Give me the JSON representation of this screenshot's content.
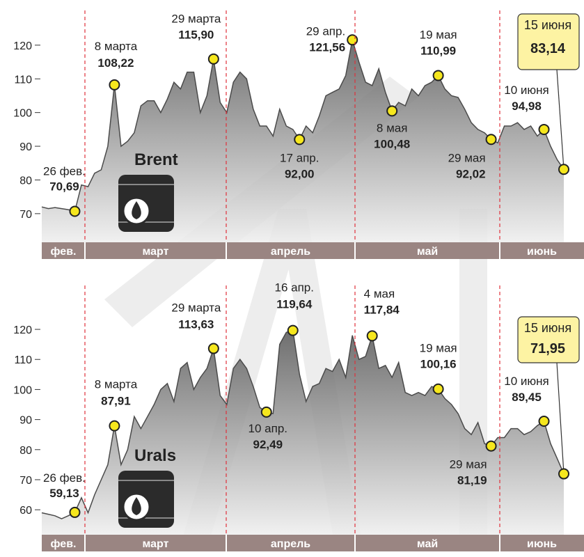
{
  "chart_data": [
    {
      "type": "area",
      "categories": [
        null,
        null,
        null,
        null,
        null,
        "26 фев.",
        null,
        null,
        null,
        null,
        null,
        "8 марта",
        null,
        null,
        null,
        null,
        null,
        null,
        null,
        null,
        null,
        null,
        null,
        null,
        null,
        null,
        "29 марта",
        null,
        null,
        null,
        null,
        null,
        null,
        null,
        null,
        null,
        null,
        null,
        null,
        "17 апр.",
        null,
        null,
        null,
        null,
        null,
        null,
        null,
        "29 апр.",
        null,
        null,
        null,
        null,
        null,
        "8 мая",
        null,
        null,
        null,
        null,
        null,
        null,
        "19 мая",
        null,
        null,
        null,
        null,
        null,
        null,
        null,
        "29 мая",
        null,
        null,
        null,
        null,
        null,
        null,
        null,
        "10 июня",
        null,
        null,
        "15 июня"
      ],
      "series": [
        {
          "name": "Brent",
          "color": "#4a4a4a",
          "values": [
            72,
            71.5,
            71.8,
            71.5,
            71.2,
            70.69,
            78.5,
            78,
            82,
            83,
            90,
            108.22,
            90,
            91.5,
            94,
            102,
            103.5,
            103.5,
            100,
            104,
            109,
            107,
            112,
            112,
            100,
            105,
            115.9,
            103,
            100,
            109,
            112,
            110,
            101,
            96,
            96,
            93,
            101,
            96,
            95,
            92,
            96,
            94,
            99,
            105,
            106,
            107,
            111,
            121.56,
            115,
            109,
            108,
            113,
            106,
            100.48,
            103,
            102,
            107,
            105,
            108,
            109,
            110.99,
            107,
            105,
            104.5,
            101,
            97,
            95,
            94,
            92.02,
            91,
            96,
            96,
            97,
            95,
            96,
            93,
            94.98,
            90,
            86,
            83.14
          ],
          "value_labels": [
            null,
            null,
            null,
            null,
            null,
            "70,69",
            null,
            null,
            null,
            null,
            null,
            "108,22",
            null,
            null,
            null,
            null,
            null,
            null,
            null,
            null,
            null,
            null,
            null,
            null,
            null,
            null,
            "115,90",
            null,
            null,
            null,
            null,
            null,
            null,
            null,
            null,
            null,
            null,
            null,
            null,
            "92,00",
            null,
            null,
            null,
            null,
            null,
            null,
            null,
            "121,56",
            null,
            null,
            null,
            null,
            null,
            "100,48",
            null,
            null,
            null,
            null,
            null,
            null,
            "110,99",
            null,
            null,
            null,
            null,
            null,
            null,
            null,
            "92,02",
            null,
            null,
            null,
            null,
            null,
            null,
            null,
            "94,98",
            null,
            null,
            "83,14"
          ]
        }
      ],
      "months": [
        "фев.",
        "март",
        "апрель",
        "май",
        "июнь"
      ],
      "ylim": [
        61.5,
        130.3
      ],
      "yticks": [
        70,
        80,
        90,
        100,
        110,
        120
      ]
    },
    {
      "type": "area",
      "categories": [
        null,
        null,
        null,
        null,
        null,
        "26 фев.",
        null,
        null,
        null,
        null,
        null,
        "8 марта",
        null,
        null,
        null,
        null,
        null,
        null,
        null,
        null,
        null,
        null,
        null,
        null,
        null,
        null,
        "29 марта",
        null,
        null,
        null,
        null,
        null,
        null,
        null,
        "10 апр.",
        null,
        null,
        null,
        "16 апр.",
        null,
        null,
        null,
        null,
        null,
        null,
        null,
        null,
        null,
        null,
        null,
        "4 мая",
        null,
        null,
        null,
        null,
        null,
        null,
        null,
        null,
        null,
        "19 мая",
        null,
        null,
        null,
        null,
        null,
        null,
        null,
        "29 мая",
        null,
        null,
        null,
        null,
        null,
        null,
        null,
        "10 июня",
        null,
        null,
        "15 июня"
      ],
      "series": [
        {
          "name": "Urals",
          "color": "#4a4a4a",
          "values": [
            59,
            58.5,
            58,
            57,
            58,
            59.13,
            64,
            59,
            65,
            70,
            75,
            87.91,
            75,
            80,
            91,
            87,
            91,
            95,
            100,
            102,
            96,
            107,
            109,
            100,
            104,
            107,
            113.63,
            98,
            95,
            107,
            110,
            107,
            101,
            94,
            92.49,
            92,
            115,
            119,
            119.64,
            105,
            96,
            101,
            102,
            107,
            106,
            110,
            104,
            118,
            110,
            111,
            117.84,
            107,
            108,
            104,
            109,
            99,
            98,
            99,
            98,
            101,
            100.16,
            97,
            95,
            92,
            87,
            85,
            89,
            82,
            81.19,
            84,
            84,
            87,
            87,
            85,
            86,
            88,
            89.45,
            82,
            77,
            71.95
          ],
          "value_labels": [
            null,
            null,
            null,
            null,
            null,
            "59,13",
            null,
            null,
            null,
            null,
            null,
            "87,91",
            null,
            null,
            null,
            null,
            null,
            null,
            null,
            null,
            null,
            null,
            null,
            null,
            null,
            null,
            "113,63",
            null,
            null,
            null,
            null,
            null,
            null,
            null,
            "92,49",
            null,
            null,
            null,
            "119,64",
            null,
            null,
            null,
            null,
            null,
            null,
            null,
            null,
            null,
            null,
            null,
            "117,84",
            null,
            null,
            null,
            null,
            null,
            null,
            null,
            null,
            null,
            "100,16",
            null,
            null,
            null,
            null,
            null,
            null,
            null,
            "81,19",
            null,
            null,
            null,
            null,
            null,
            null,
            null,
            "89,45",
            null,
            null,
            "71,95"
          ]
        }
      ],
      "months": [
        "фев.",
        "март",
        "апрель",
        "май",
        "июнь"
      ],
      "ylim": [
        51.7,
        134.6
      ],
      "yticks": [
        60,
        70,
        80,
        90,
        100,
        110,
        120
      ]
    }
  ]
}
